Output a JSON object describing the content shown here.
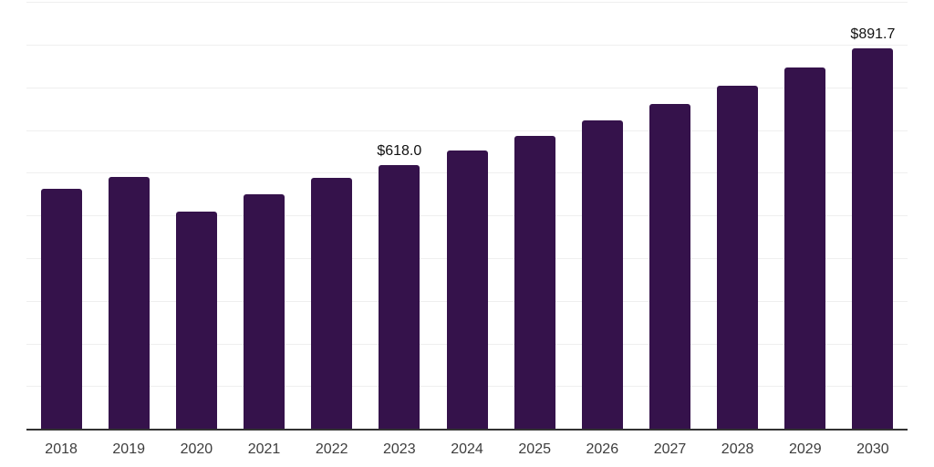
{
  "chart_data": {
    "type": "bar",
    "title": "",
    "xlabel": "",
    "ylabel": "",
    "categories": [
      "2018",
      "2019",
      "2020",
      "2021",
      "2022",
      "2023",
      "2024",
      "2025",
      "2026",
      "2027",
      "2028",
      "2029",
      "2030"
    ],
    "values": [
      563,
      591,
      510,
      549,
      589,
      618.0,
      651.5,
      686.3,
      723.2,
      762.1,
      803.1,
      846.2,
      891.7
    ],
    "data_labels": {
      "2023": "$618.0",
      "2030": "$891.7"
    },
    "ylim": [
      0,
      1000
    ],
    "gridline_step": 100,
    "grid": "horizontal-only",
    "legend": "none",
    "y_axis_tick_labels": "none",
    "bar_color": "#35124b",
    "background_color": "#ffffff",
    "gridline_color": "#efefef",
    "axis_line_color": "#333333",
    "value_label_color": "#111111",
    "tick_label_color": "#3d3d3d"
  }
}
